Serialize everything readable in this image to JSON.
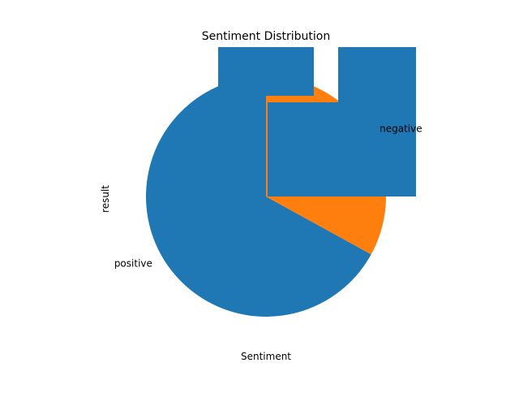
{
  "chart_data": {
    "type": "pie",
    "title": "Sentiment Distribution",
    "xlabel": "Sentiment",
    "ylabel": "result",
    "legend": "none",
    "slices": [
      {
        "label": "positive",
        "value": 67,
        "color": "#1f77b4"
      },
      {
        "label": "negative",
        "value": 33,
        "color": "#ff7f0e"
      }
    ]
  }
}
